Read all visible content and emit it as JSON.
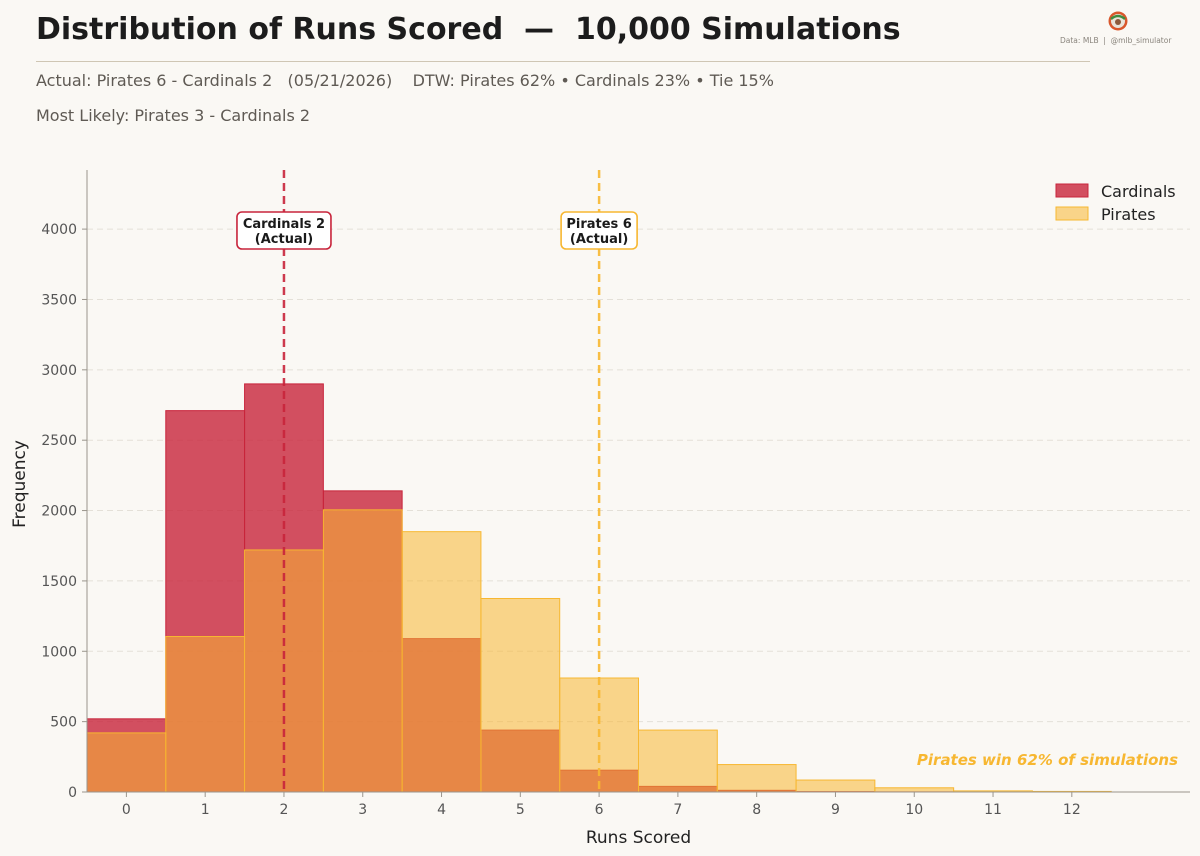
{
  "header": {
    "title": "Distribution of Runs Scored  —  10,000 Simulations",
    "subtitle_line1": "Actual: Pirates 6 - Cardinals 2   (05/21/2026)    DTW: Pirates 62% • Cardinals 23% • Tie 15%",
    "subtitle_line2": "Most Likely: Pirates 3 - Cardinals 2",
    "credit": "Data: MLB  |  @mlb_simulator"
  },
  "colors": {
    "cardinals": "#c8243b",
    "pirates": "#f7b731",
    "overlap": "#d23c40",
    "background": "#faf8f4"
  },
  "chart_data": {
    "type": "bar",
    "title": "",
    "xlabel": "Runs Scored",
    "ylabel": "Frequency",
    "categories": [
      "0",
      "1",
      "2",
      "3",
      "4",
      "5",
      "6",
      "7",
      "8",
      "9",
      "10",
      "11",
      "12"
    ],
    "x": [
      0,
      1,
      2,
      3,
      4,
      5,
      6,
      7,
      8,
      9,
      10,
      11,
      12
    ],
    "xlim": [
      -0.5,
      13.5
    ],
    "ylim": [
      0,
      4420
    ],
    "yticks": [
      0,
      500,
      1000,
      1500,
      2000,
      2500,
      3000,
      3500,
      4000
    ],
    "grid": true,
    "legend_position": "top-right",
    "series": [
      {
        "name": "Cardinals",
        "color": "#c8243b",
        "values": [
          520,
          2710,
          2900,
          2140,
          1090,
          440,
          155,
          40,
          12,
          3,
          1,
          0,
          0
        ]
      },
      {
        "name": "Pirates",
        "color": "#f7b731",
        "values": [
          420,
          1105,
          1720,
          2005,
          1850,
          1375,
          810,
          440,
          195,
          85,
          30,
          8,
          4
        ]
      }
    ],
    "reference_lines": [
      {
        "x": 2,
        "color": "#c8243b",
        "label_line1": "Cardinals 2",
        "label_line2": "(Actual)"
      },
      {
        "x": 6,
        "color": "#f7b731",
        "label_line1": "Pirates 6",
        "label_line2": "(Actual)"
      }
    ],
    "annotation": {
      "text": "Pirates win 62% of simulations",
      "color": "#f7b731"
    }
  }
}
